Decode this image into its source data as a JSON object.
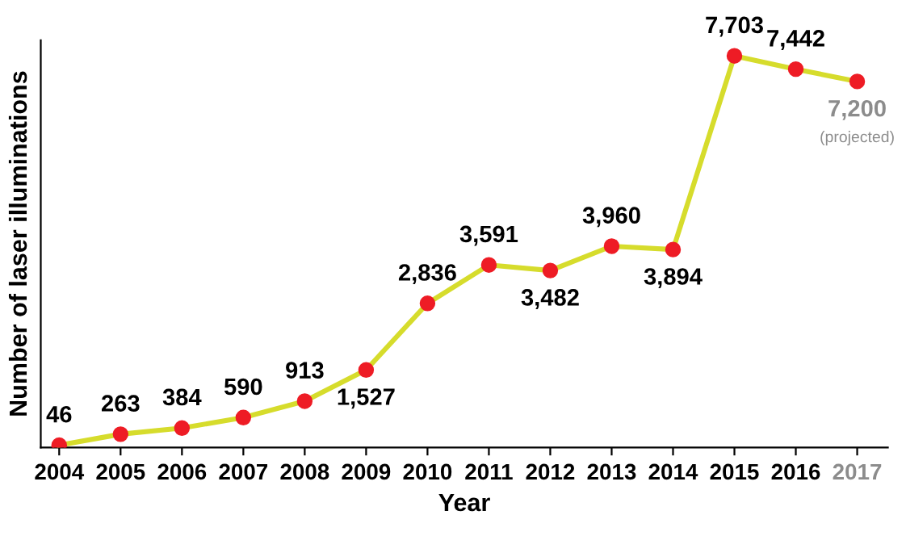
{
  "chart_data": {
    "type": "line",
    "xlabel": "Year",
    "ylabel": "Number of laser illuminations",
    "categories": [
      "2004",
      "2005",
      "2006",
      "2007",
      "2008",
      "2009",
      "2010",
      "2011",
      "2012",
      "2013",
      "2014",
      "2015",
      "2016",
      "2017"
    ],
    "series": [
      {
        "color": "#d6dc2c",
        "values": [
          46,
          263,
          384,
          590,
          913,
          1527,
          2836,
          3591,
          3482,
          3960,
          3894,
          7703,
          7442,
          7200
        ],
        "value_labels": [
          "46",
          "263",
          "384",
          "590",
          "913",
          "1,527",
          "2,836",
          "3,591",
          "3,482",
          "3,960",
          "3,894",
          "7,703",
          "7,442",
          "7,200"
        ]
      }
    ],
    "annotations": [
      "(projected)"
    ],
    "marker": "circle",
    "line_style": "solid",
    "grid": false,
    "legend": false
  }
}
